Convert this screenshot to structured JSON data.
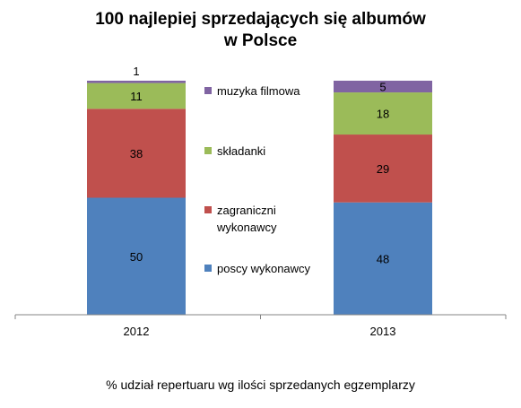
{
  "chart_data": {
    "type": "bar",
    "stacked": true,
    "title": [
      "100 najlepiej sprzedających się albumów",
      "w Polsce"
    ],
    "footer": "% udział repertuaru wg ilości sprzedanych egzemplarzy",
    "categories": [
      "2012",
      "2013"
    ],
    "ylim": [
      0,
      100
    ],
    "grid": false,
    "legend_position": "center",
    "series": [
      {
        "name": "poscy wykonawcy",
        "values": [
          50,
          48
        ],
        "color": "#4F81BD"
      },
      {
        "name": "zagraniczni wykonawcy",
        "legend_lines": [
          "zagraniczni",
          "wykonawcy"
        ],
        "values": [
          38,
          29
        ],
        "color": "#C0504D"
      },
      {
        "name": "składanki",
        "values": [
          11,
          18
        ],
        "color": "#9BBB59"
      },
      {
        "name": "muzyka filmowa",
        "values": [
          1,
          5
        ],
        "color": "#8064A2"
      }
    ]
  }
}
